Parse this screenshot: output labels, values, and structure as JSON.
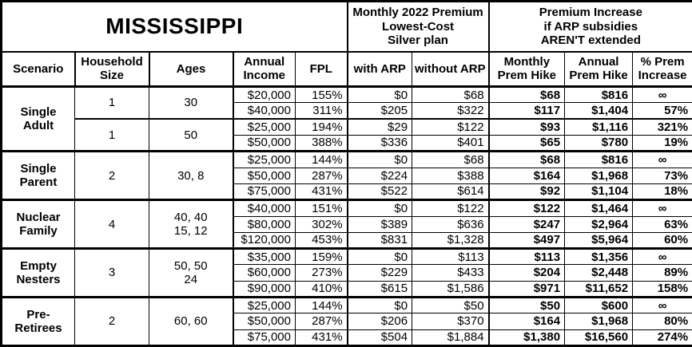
{
  "chart_data": {
    "type": "table",
    "title": "MISSISSIPPI",
    "premium_header": "Monthly 2022 Premium\nLowest-Cost\nSilver plan",
    "increase_header": "Premium Increase\nif ARP subsidies\nAREN'T extended",
    "columns": [
      "Scenario",
      "Household\nSize",
      "Ages",
      "Annual\nIncome",
      "FPL",
      "with ARP",
      "without ARP",
      "Monthly\nPrem Hike",
      "Annual\nPrem Hike",
      "% Prem\nIncrease"
    ],
    "shading_color": "#d9d9d9",
    "infinity_symbol": "∞",
    "groups": [
      {
        "scenario": "Single\nAdult",
        "subgroups": [
          {
            "household_size": "1",
            "ages": "30",
            "shaded": true,
            "rows": [
              [
                "$20,000",
                "155%",
                "$0",
                "$68",
                "$68",
                "$816",
                "∞"
              ],
              [
                "$40,000",
                "311%",
                "$205",
                "$322",
                "$117",
                "$1,404",
                "57%"
              ]
            ]
          },
          {
            "household_size": "1",
            "ages": "50",
            "shaded": false,
            "rows": [
              [
                "$25,000",
                "194%",
                "$29",
                "$122",
                "$93",
                "$1,116",
                "321%"
              ],
              [
                "$50,000",
                "388%",
                "$336",
                "$401",
                "$65",
                "$780",
                "19%"
              ]
            ]
          }
        ]
      },
      {
        "scenario": "Single\nParent",
        "subgroups": [
          {
            "household_size": "2",
            "ages": "30, 8",
            "shaded": true,
            "rows": [
              [
                "$25,000",
                "144%",
                "$0",
                "$68",
                "$68",
                "$816",
                "∞"
              ],
              [
                "$50,000",
                "287%",
                "$224",
                "$388",
                "$164",
                "$1,968",
                "73%"
              ],
              [
                "$75,000",
                "431%",
                "$522",
                "$614",
                "$92",
                "$1,104",
                "18%"
              ]
            ]
          }
        ]
      },
      {
        "scenario": "Nuclear\nFamily",
        "subgroups": [
          {
            "household_size": "4",
            "ages": "40, 40\n15, 12",
            "shaded": false,
            "rows": [
              [
                "$40,000",
                "151%",
                "$0",
                "$122",
                "$122",
                "$1,464",
                "∞"
              ],
              [
                "$80,000",
                "302%",
                "$389",
                "$636",
                "$247",
                "$2,964",
                "63%"
              ],
              [
                "$120,000",
                "453%",
                "$831",
                "$1,328",
                "$497",
                "$5,964",
                "60%"
              ]
            ]
          }
        ]
      },
      {
        "scenario": "Empty\nNesters",
        "subgroups": [
          {
            "household_size": "3",
            "ages": "50, 50\n24",
            "shaded": true,
            "rows": [
              [
                "$35,000",
                "159%",
                "$0",
                "$113",
                "$113",
                "$1,356",
                "∞"
              ],
              [
                "$60,000",
                "273%",
                "$229",
                "$433",
                "$204",
                "$2,448",
                "89%"
              ],
              [
                "$90,000",
                "410%",
                "$615",
                "$1,586",
                "$971",
                "$11,652",
                "158%"
              ]
            ]
          }
        ]
      },
      {
        "scenario": "Pre-\nRetirees",
        "subgroups": [
          {
            "household_size": "2",
            "ages": "60, 60",
            "shaded": false,
            "rows": [
              [
                "$25,000",
                "144%",
                "$0",
                "$50",
                "$50",
                "$600",
                "∞"
              ],
              [
                "$50,000",
                "287%",
                "$206",
                "$370",
                "$164",
                "$1,968",
                "80%"
              ],
              [
                "$75,000",
                "431%",
                "$504",
                "$1,884",
                "$1,380",
                "$16,560",
                "274%"
              ]
            ]
          }
        ]
      }
    ]
  }
}
